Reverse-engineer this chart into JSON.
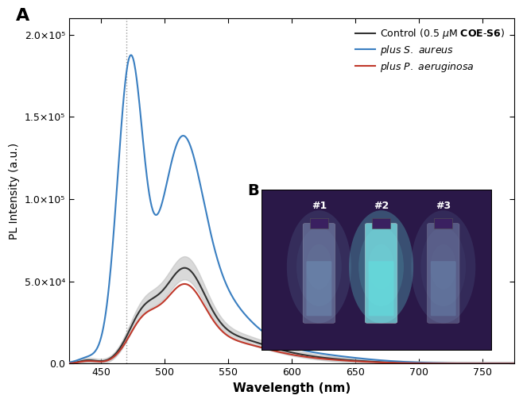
{
  "title_label": "A",
  "xlabel": "Wavelength (nm)",
  "ylabel": "PL Intensity (a.u.)",
  "xlim": [
    425,
    775
  ],
  "ylim": [
    0,
    210000
  ],
  "yticks": [
    0,
    50000,
    100000,
    150000,
    200000
  ],
  "ytick_labels": [
    "0.0",
    "5.0×10⁴",
    "1.0×10⁵",
    "1.5×10⁵",
    "2.0×10⁵"
  ],
  "xticks": [
    450,
    500,
    550,
    600,
    650,
    700,
    750
  ],
  "dashed_line_x": 470,
  "control_color": "#333333",
  "aureus_color": "#3a7fc1",
  "aeruginosa_color": "#c0392b",
  "control_fill_color": "#bbbbbb",
  "background_color": "#ffffff",
  "inset_bg": "#2a1a4a",
  "inset_label": "B",
  "inset_sublabels": [
    "#1",
    "#2",
    "#3"
  ]
}
